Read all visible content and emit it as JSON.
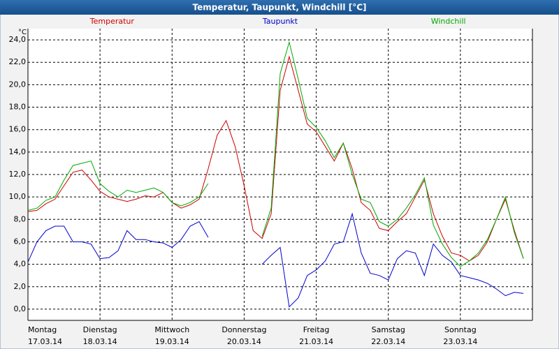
{
  "chart_data": {
    "type": "line",
    "title": "Temperatur, Taupunkt, Windchill [°C]",
    "y_unit": "°C",
    "xlim": [
      0,
      7
    ],
    "xticks": [
      {
        "value": 0,
        "label": "Montag",
        "date": "17.03.14"
      },
      {
        "value": 1,
        "label": "Dienstag",
        "date": "18.03.14"
      },
      {
        "value": 2,
        "label": "Mittwoch",
        "date": "19.03.14"
      },
      {
        "value": 3,
        "label": "Donnerstag",
        "date": "20.03.14"
      },
      {
        "value": 4,
        "label": "Freitag",
        "date": "21.03.14"
      },
      {
        "value": 5,
        "label": "Samstag",
        "date": "22.03.14"
      },
      {
        "value": 6,
        "label": "Sonntag",
        "date": "23.03.14"
      }
    ],
    "ylim": [
      -1,
      25
    ],
    "yticks": [
      {
        "value": 0,
        "label": "0,0"
      },
      {
        "value": 2,
        "label": "2,0"
      },
      {
        "value": 4,
        "label": "4,0"
      },
      {
        "value": 6,
        "label": "6,0"
      },
      {
        "value": 8,
        "label": "8,0"
      },
      {
        "value": 10,
        "label": "10,0"
      },
      {
        "value": 12,
        "label": "12,0"
      },
      {
        "value": 14,
        "label": "14,0"
      },
      {
        "value": 16,
        "label": "16,0"
      },
      {
        "value": 18,
        "label": "18,0"
      },
      {
        "value": 20,
        "label": "20,0"
      },
      {
        "value": 22,
        "label": "22,0"
      },
      {
        "value": 24,
        "label": "24,0"
      }
    ],
    "grid": true,
    "legend": "top",
    "x": [
      0,
      0.125,
      0.25,
      0.375,
      0.5,
      0.625,
      0.75,
      0.875,
      1,
      1.125,
      1.25,
      1.375,
      1.5,
      1.625,
      1.75,
      1.875,
      2,
      2.125,
      2.25,
      2.375,
      2.5,
      2.625,
      2.75,
      2.875,
      3,
      3.125,
      3.25,
      3.375,
      3.5,
      3.625,
      3.75,
      3.875,
      4,
      4.125,
      4.25,
      4.375,
      4.5,
      4.625,
      4.75,
      4.875,
      5,
      5.125,
      5.25,
      5.375,
      5.5,
      5.625,
      5.75,
      5.875,
      6,
      6.125,
      6.25,
      6.375,
      6.5,
      6.625,
      6.75,
      6.875
    ],
    "series": [
      {
        "name": "Temperatur",
        "color": "#cc0000",
        "values": [
          8.7,
          8.8,
          9.4,
          9.8,
          11.0,
          12.2,
          12.4,
          11.5,
          10.5,
          10.0,
          9.8,
          9.6,
          9.8,
          10.1,
          10.0,
          10.4,
          9.5,
          9.0,
          9.3,
          9.8,
          12.5,
          15.5,
          16.8,
          14.5,
          11.0,
          7.0,
          6.3,
          8.5,
          19.5,
          22.5,
          19.5,
          16.5,
          15.8,
          14.5,
          13.2,
          14.8,
          12.5,
          9.5,
          8.8,
          7.2,
          7.0,
          7.8,
          8.5,
          10.0,
          11.5,
          8.5,
          6.5,
          5.0,
          4.8,
          4.3,
          4.8,
          6.0,
          8.0,
          9.8,
          7.0,
          4.5
        ]
      },
      {
        "name": "Taupunkt",
        "color": "#0000cc",
        "values": [
          4.2,
          6.0,
          7.0,
          7.4,
          7.4,
          6.0,
          6.0,
          5.8,
          4.5,
          4.6,
          5.2,
          7.0,
          6.2,
          6.2,
          6.0,
          5.9,
          5.5,
          6.2,
          7.4,
          7.8,
          6.4,
          null,
          null,
          null,
          null,
          null,
          4.0,
          4.8,
          5.5,
          0.2,
          1.0,
          3.0,
          3.5,
          4.3,
          5.8,
          6.0,
          8.5,
          5.0,
          3.2,
          3.0,
          2.6,
          4.5,
          5.2,
          5.0,
          3.0,
          5.8,
          4.8,
          4.2,
          3.0,
          2.8,
          2.6,
          2.3,
          1.8,
          1.2,
          1.5,
          1.4
        ]
      },
      {
        "name": "Windchill",
        "color": "#00aa00",
        "values": [
          8.8,
          9.0,
          9.7,
          10.0,
          11.5,
          12.8,
          13.0,
          13.2,
          11.2,
          10.5,
          10.0,
          10.6,
          10.4,
          10.6,
          10.8,
          10.4,
          9.5,
          9.2,
          9.5,
          10.0,
          11.2,
          null,
          null,
          null,
          null,
          null,
          6.5,
          9.0,
          21.0,
          23.8,
          20.5,
          17.0,
          16.2,
          15.0,
          13.5,
          14.8,
          12.0,
          9.8,
          9.5,
          7.8,
          7.4,
          8.0,
          9.0,
          10.2,
          11.7,
          7.5,
          5.8,
          4.6,
          3.8,
          4.3,
          5.0,
          6.2,
          8.0,
          10.0,
          6.8,
          4.5
        ]
      }
    ]
  }
}
